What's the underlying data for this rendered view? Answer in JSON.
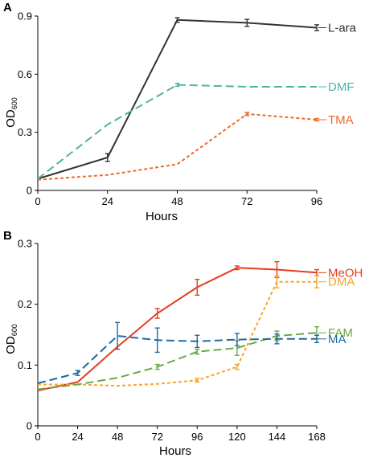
{
  "chart_data": [
    {
      "panel": "A",
      "type": "line",
      "xlabel": "Hours",
      "ylabel": "OD",
      "ylabel_sub": "600",
      "xticks": [
        0,
        24,
        48,
        72,
        96
      ],
      "yticks": [
        "0",
        "0.3",
        "0.6",
        "0.9"
      ],
      "xlim": [
        0,
        96
      ],
      "ylim": [
        0,
        0.9
      ],
      "grid": false,
      "legend": "labels at right end of each line",
      "series": [
        {
          "name": "L-ara",
          "color": "#333333",
          "dash": "solid",
          "x": [
            0,
            24,
            48,
            72,
            96
          ],
          "y": [
            0.06,
            0.17,
            0.88,
            0.865,
            0.84
          ],
          "err": [
            0,
            0.02,
            0.012,
            0.018,
            0.015
          ]
        },
        {
          "name": "DMF",
          "color": "#4fb5a5",
          "dash": "long",
          "x": [
            0,
            24,
            48,
            72,
            96
          ],
          "y": [
            0.06,
            0.34,
            0.545,
            0.535,
            0.535
          ],
          "err": [
            0,
            0,
            0.008,
            0,
            0
          ]
        },
        {
          "name": "TMA",
          "color": "#ee6a2a",
          "dash": "short",
          "x": [
            0,
            24,
            48,
            72,
            96
          ],
          "y": [
            0.055,
            0.08,
            0.135,
            0.395,
            0.365
          ],
          "err": [
            0,
            0,
            0,
            0.008,
            0.006
          ]
        }
      ]
    },
    {
      "panel": "B",
      "type": "line",
      "xlabel": "Hours",
      "ylabel": "OD",
      "ylabel_sub": "600",
      "xticks": [
        0,
        24,
        48,
        72,
        96,
        120,
        144,
        168
      ],
      "yticks": [
        "0",
        "0.1",
        "0.2",
        "0.3"
      ],
      "xlim": [
        0,
        168
      ],
      "ylim": [
        0,
        0.3
      ],
      "grid": false,
      "legend": "labels at right end of each line",
      "series": [
        {
          "name": "MeOH",
          "color": "#e43d22",
          "dash": "solid",
          "x": [
            0,
            24,
            48,
            72,
            96,
            120,
            144,
            168
          ],
          "y": [
            0.058,
            0.072,
            0.13,
            0.185,
            0.228,
            0.26,
            0.257,
            0.252
          ],
          "err": [
            0,
            0,
            0,
            0.008,
            0.013,
            0.003,
            0.013,
            0.005
          ]
        },
        {
          "name": "DMA",
          "color": "#f5a52f",
          "dash": "short",
          "x": [
            0,
            24,
            48,
            72,
            96,
            120,
            144,
            168
          ],
          "y": [
            0.068,
            0.068,
            0.066,
            0.069,
            0.075,
            0.097,
            0.237,
            0.237
          ],
          "err": [
            0,
            0,
            0,
            0,
            0.003,
            0.004,
            0.01,
            0.01
          ]
        },
        {
          "name": "FAM",
          "color": "#6aa845",
          "dash": "long",
          "x": [
            0,
            24,
            48,
            72,
            96,
            120,
            144,
            168
          ],
          "y": [
            0.06,
            0.068,
            0.079,
            0.097,
            0.122,
            0.128,
            0.148,
            0.153
          ],
          "err": [
            0,
            0,
            0,
            0.004,
            0.004,
            0.012,
            0.008,
            0.01
          ]
        },
        {
          "name": "MA",
          "color": "#1f6aa3",
          "dash": "long",
          "x": [
            0,
            24,
            48,
            72,
            96,
            120,
            144,
            168
          ],
          "y": [
            0.07,
            0.087,
            0.148,
            0.141,
            0.139,
            0.142,
            0.143,
            0.143
          ],
          "err": [
            0,
            0.004,
            0.022,
            0.02,
            0.01,
            0.01,
            0.008,
            0.006
          ]
        }
      ]
    }
  ]
}
